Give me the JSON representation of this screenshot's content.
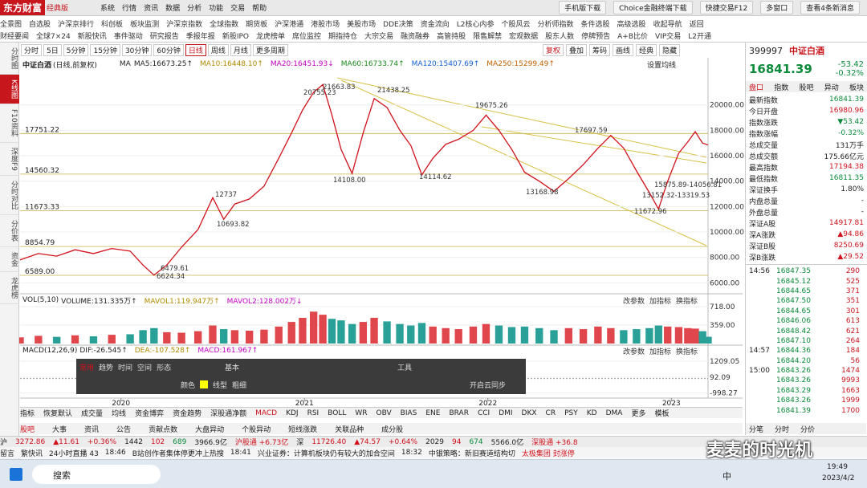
{
  "top_bar": {
    "logo": "东方财富",
    "edition": "经典版",
    "menu": [
      "系统",
      "行情",
      "资讯",
      "数据",
      "分析",
      "功能",
      "交易",
      "帮助"
    ],
    "buttons": [
      "手机版下载",
      "Choice金融终端下载",
      "快捷交易F12",
      "多窗口",
      "查看4条新消息"
    ]
  },
  "nav": {
    "row1": [
      "全景图",
      "自选股",
      "沪深京排行",
      "科创板",
      "板块监测",
      "沪深京指数",
      "全球指数",
      "期货板",
      "沪深港通",
      "港股市场",
      "美股市场",
      "DDE决策",
      "资金流向",
      "L2核心内参",
      "个股风云",
      "分析师指数",
      "条件选股",
      "高级选股",
      "收起导航",
      "返回"
    ],
    "row2": [
      "财经要闻",
      "全球7×24",
      "新股快讯",
      "事件驱动",
      "研究报告",
      "季报年报",
      "新股IPO",
      "龙虎榜单",
      "席位监控",
      "期指持仓",
      "大宗交易",
      "融资融券",
      "高管持股",
      "限售解禁",
      "宏观数据",
      "股东人数",
      "停牌预告",
      "A+B比价",
      "VIP交易",
      "L2开通"
    ]
  },
  "side_tabs": [
    "分时图",
    "K线图",
    "F10资料",
    "深度F9",
    "分时对比",
    "分价表",
    "资金",
    "龙虎榜"
  ],
  "periods": [
    "分时",
    "5日",
    "5分钟",
    "15分钟",
    "30分钟",
    "60分钟",
    "日线",
    "周线",
    "月线",
    "更多周期"
  ],
  "chart_tools": [
    "复权",
    "叠加",
    "筹码",
    "画线",
    "经典",
    "隐藏"
  ],
  "chart_header": {
    "name": "中证白酒",
    "mode": "(日线,前复权)",
    "ma_label": "MA",
    "ma": [
      "MA5:16673.25↑",
      "MA10:16448.10↑",
      "MA20:16451.93↓",
      "MA60:16733.74↑",
      "MA120:15407.69↑",
      "MA250:15299.49↑"
    ],
    "setting": "设置均线"
  },
  "volume_header": {
    "name": "VOL(5,10)",
    "items": [
      "VOLUME:131.335万↑",
      "MAVOL1:119.947万↑",
      "MAVOL2:128.002万↓"
    ]
  },
  "macd_header": {
    "name": "MACD(12,26,9)",
    "items": [
      "DIF:-26.545↑",
      "DEA:-107.528↑",
      "MACD:161.967↑"
    ]
  },
  "panel_tools": [
    "改参数",
    "加指标",
    "换指标"
  ],
  "chart_data": {
    "type": "line",
    "x": [
      2019.45,
      2019.55,
      2019.65,
      2019.75,
      2019.85,
      2019.95,
      2020.05,
      2020.12,
      2020.18,
      2020.25,
      2020.33,
      2020.42,
      2020.5,
      2020.56,
      2020.62,
      2020.7,
      2020.78,
      2020.86,
      2020.93,
      2020.99,
      2021.05,
      2021.1,
      2021.15,
      2021.2,
      2021.26,
      2021.32,
      2021.38,
      2021.45,
      2021.52,
      2021.58,
      2021.64,
      2021.7,
      2021.77,
      2021.84,
      2021.92,
      2021.99,
      2022.06,
      2022.13,
      2022.2,
      2022.28,
      2022.36,
      2022.44,
      2022.52,
      2022.6,
      2022.67,
      2022.74,
      2022.81,
      2022.88,
      2022.93,
      2022.98,
      2023.04,
      2023.09,
      2023.13,
      2023.17,
      2023.2
    ],
    "values": [
      7800,
      8300,
      8100,
      8600,
      8300,
      8700,
      8500,
      7400,
      6600,
      7400,
      8800,
      10200,
      12700,
      11000,
      12200,
      12600,
      13600,
      15800,
      17800,
      19600,
      21000,
      21600,
      19200,
      16500,
      14600,
      17800,
      20500,
      19800,
      18000,
      16800,
      14500,
      15800,
      16900,
      17300,
      18000,
      19200,
      18000,
      16500,
      14700,
      14000,
      13200,
      14200,
      15300,
      16600,
      17600,
      16600,
      14800,
      13100,
      11800,
      14000,
      16200,
      17100,
      17900,
      17000,
      16841.39
    ],
    "volume": [
      120,
      150,
      130,
      160,
      140,
      170,
      180,
      260,
      300,
      220,
      210,
      240,
      350,
      280,
      260,
      250,
      270,
      330,
      420,
      500,
      620,
      560,
      480,
      450,
      380,
      420,
      500,
      430,
      380,
      350,
      400,
      330,
      300,
      280,
      330,
      380,
      350,
      320,
      330,
      300,
      260,
      300,
      280,
      330,
      300,
      260,
      280,
      300,
      350,
      330,
      320,
      300,
      290,
      240,
      131.335
    ],
    "xlim": [
      2019.45,
      2023.2
    ],
    "xticks": [
      2020,
      2021,
      2022,
      2023
    ],
    "ylim": [
      5200,
      22700
    ],
    "yticks": [
      {
        "value": 6000,
        "label": "6000.00"
      },
      {
        "value": 8000,
        "label": "8000.00"
      },
      {
        "value": 10000,
        "label": "10000.00"
      },
      {
        "value": 12000,
        "label": "12000.00"
      },
      {
        "value": 14000,
        "label": "14000.00"
      },
      {
        "value": 16000,
        "label": "16000.00"
      },
      {
        "value": 18000,
        "label": "18000.00"
      },
      {
        "value": 20000,
        "label": "20000.00"
      }
    ],
    "levels": [
      17751.22,
      14560.32,
      11673.33,
      8854.79,
      {
        "value": 6589,
        "label": "6589.00"
      }
    ],
    "annotations": [
      "21663.83",
      "20755.23",
      "21438.25",
      "19675.26",
      "17697.59",
      "14108.00",
      "14114.62",
      "13168.98",
      "11672.96",
      "13152.32-13319.53",
      "15875.89-14056.81",
      "10693.82",
      "12737",
      "6479.61",
      "6624.34"
    ],
    "volume_ylim": [
      0,
      905
    ],
    "volume_yticks": [
      {
        "value": 718,
        "label": "718.00"
      },
      {
        "value": 359,
        "label": "359.00"
      }
    ],
    "macd_ylim": [
      -1300,
      1922
    ],
    "macd_yticks": [
      {
        "value": 1209.05,
        "label": "1209.05"
      },
      92.09,
      -998.27
    ]
  },
  "draw_toolbar": {
    "tabs": [
      "常用",
      "趋势",
      "时间",
      "空间",
      "形态"
    ],
    "basic": "基本",
    "tools": "工具",
    "color": "颜色",
    "line_type": "线型",
    "thickness": "粗细",
    "sync": "开启云同步"
  },
  "indicator_tabs": [
    "指标",
    "恢复默认",
    "成交量",
    "均线",
    "资金博弈",
    "资金趋势",
    "深股通净额",
    "MACD",
    "KDJ",
    "RSI",
    "BOLL",
    "WR",
    "OBV",
    "BIAS",
    "ENE",
    "BRAR",
    "CCI",
    "DMI",
    "DKX",
    "CR",
    "PSY",
    "KD",
    "DMA",
    "更多",
    "模板"
  ],
  "bottom_tabs": [
    "股吧",
    "大事",
    "资讯",
    "公告",
    "贡献点数",
    "大盘异动",
    "个股异动",
    "短线涨跌",
    "关联品种",
    "成分股"
  ],
  "quote": {
    "code": "399997",
    "name": "中证白酒",
    "price": "16841.39",
    "change": "-53.42",
    "pct": "-0.32%",
    "tabs": [
      "盘口",
      "指数",
      "股吧",
      "异动",
      "板块"
    ],
    "stats": [
      [
        "最新指数",
        "16841.39"
      ],
      [
        "今日开盘",
        "16980.96"
      ],
      [
        "指数涨跌",
        "▼53.42"
      ],
      [
        "指数涨幅",
        "-0.32%"
      ],
      [
        "总成交量",
        "131万手"
      ],
      [
        "总成交额",
        "175.66亿元"
      ],
      [
        "最高指数",
        "17194.38"
      ],
      [
        "最低指数",
        "16811.35"
      ],
      [
        "深证换手",
        "1.80%"
      ],
      [
        "内盘总量",
        "-"
      ],
      [
        "外盘总量",
        "-"
      ],
      [
        "深证A股",
        "14917.81"
      ],
      [
        "深A涨跌",
        "▲94.86"
      ],
      [
        "深证B股",
        "8250.69"
      ],
      [
        "深B涨跌",
        "▲29.52"
      ]
    ],
    "trades": [
      [
        "14:56",
        "16847.35",
        "290"
      ],
      [
        "",
        "16845.12",
        "525"
      ],
      [
        "",
        "16844.65",
        "371"
      ],
      [
        "",
        "16847.50",
        "351"
      ],
      [
        "",
        "16844.65",
        "301"
      ],
      [
        "",
        "16846.06",
        "613"
      ],
      [
        "",
        "16848.42",
        "621"
      ],
      [
        "",
        "16847.10",
        "264"
      ],
      [
        "14:57",
        "16844.36",
        "184"
      ],
      [
        "",
        "16844.20",
        "56"
      ],
      [
        "15:00",
        "16843.26",
        "1474"
      ],
      [
        "",
        "16843.26",
        "9993"
      ],
      [
        "",
        "16843.29",
        "1663"
      ],
      [
        "",
        "16843.26",
        "1999"
      ],
      [
        "",
        "16841.39",
        "1700"
      ]
    ],
    "bottom_tabs": [
      "分笔",
      "分时",
      "分价"
    ]
  },
  "status": {
    "sh": [
      "沪",
      "3272.86",
      "▲11.61",
      "+0.36%",
      "1442",
      "102",
      "689",
      "3966.9亿",
      "沪股通 +6.73亿"
    ],
    "sz": [
      "深",
      "11726.40",
      "▲74.57",
      "+0.64%",
      "2029",
      "94",
      "674",
      "5566.0亿",
      "深股通 +36.8"
    ]
  },
  "news": [
    "留言",
    "繁快讯",
    "24小时直播 43",
    "18:46",
    "B站创作者集体停更冲上热搜",
    "18:41",
    "兴业证券：计算机板块仍有较大的加合空间",
    "18:32",
    "中银策略：新旧赛道结构切",
    "太极集团 封涨停"
  ],
  "watermark": "麦麦的时光机",
  "taskbar": {
    "search": "搜索",
    "ime": "中",
    "time": "19:49",
    "date": "2023/4/2"
  }
}
